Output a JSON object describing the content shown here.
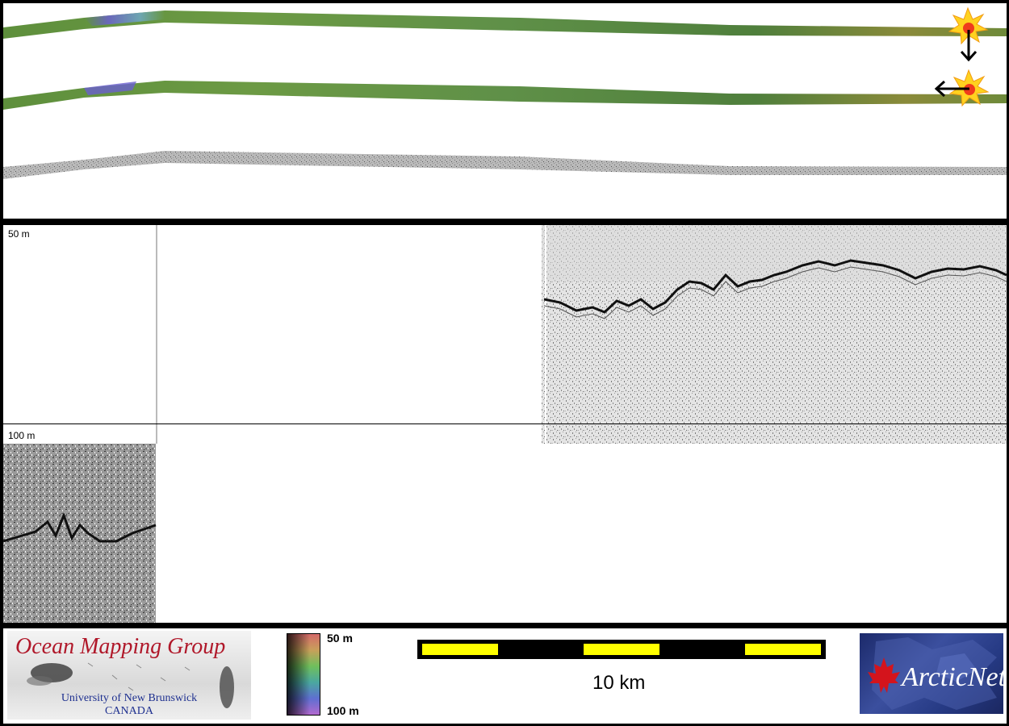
{
  "profile": {
    "label_top": "50 m",
    "label_bottom": "100 m"
  },
  "legend": {
    "depth_min": "50 m",
    "depth_max": "100 m"
  },
  "scale": {
    "label": "10 km"
  },
  "logos": {
    "omg_title": "Ocean Mapping Group",
    "omg_university": "University of New Brunswick",
    "omg_country": "CANADA",
    "arcticnet": "ArcticNet"
  },
  "colors": {
    "scale_yellow": "#ffff00",
    "omg_red": "#b0182a",
    "omg_blue": "#1d2f8f",
    "arcticnet_navy": "#1c2a6b",
    "maple_red": "#d4141c"
  }
}
